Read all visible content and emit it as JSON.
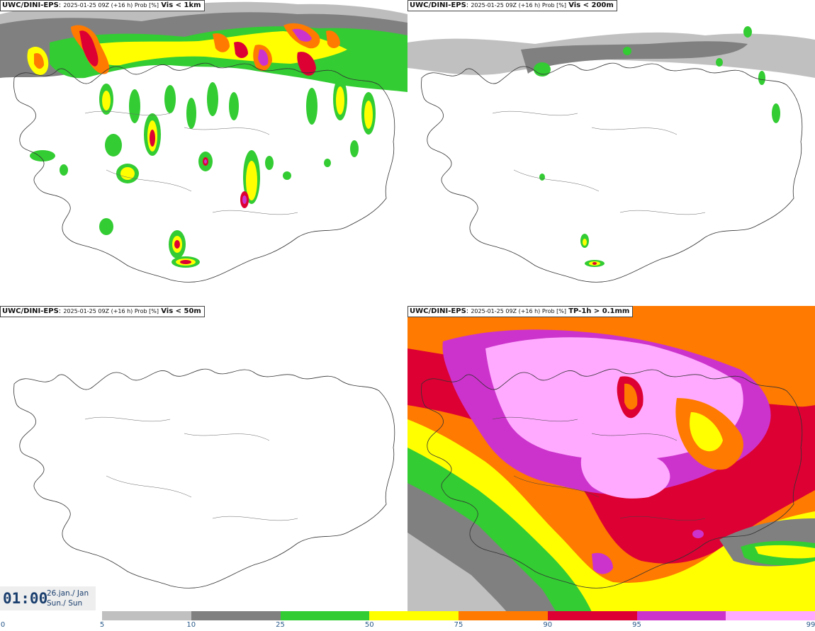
{
  "panels": [
    {
      "model": "UWC/DINI-EPS",
      "run": "2025-01-25 09Z (+16 h) Prob [%]",
      "threshold": "Vis < 1km"
    },
    {
      "model": "UWC/DINI-EPS",
      "run": "2025-01-25 09Z (+16 h) Prob [%]",
      "threshold": "Vis < 200m"
    },
    {
      "model": "UWC/DINI-EPS",
      "run": "2025-01-25 09Z (+16 h) Prob [%]",
      "threshold": "Vis < 50m"
    },
    {
      "model": "UWC/DINI-EPS",
      "run": "2025-01-25 09Z (+16 h) Prob [%]",
      "threshold": "TP-1h > 0.1mm"
    }
  ],
  "valid_time": {
    "time": "01:00",
    "date": "26.jan./ Jan",
    "day": "Sun./ Sun"
  },
  "legend": {
    "ticks": [
      "0",
      "5",
      "10",
      "25",
      "50",
      "75",
      "90",
      "95",
      "99"
    ],
    "colors": [
      "#c0c0c0",
      "#808080",
      "#33cc33",
      "#ffff00",
      "#ff7a00",
      "#dd0033",
      "#cc33cc",
      "#ffaaff"
    ]
  }
}
